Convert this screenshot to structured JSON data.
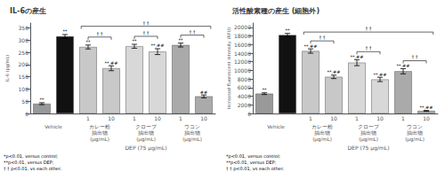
{
  "chart_data": [
    {
      "type": "bar",
      "title": "IL-6の産生",
      "y_label": "IL-6 (pg/mL)",
      "categories": [
        null,
        null,
        "1",
        "10",
        "1",
        "10",
        "1",
        "10"
      ],
      "groups": [
        "Vehicle",
        "カレー粉\n抽出物",
        "クローブ\n抽出物",
        "ウコン\n抽出物"
      ],
      "group_unit": "(μg/mL)",
      "dep_label": "DEP (75 μg/mL)",
      "values": [
        40,
        315,
        272,
        185,
        275,
        253,
        280,
        70
      ],
      "errors": [
        4,
        8,
        8,
        10,
        8,
        12,
        8,
        6
      ],
      "colors": [
        "#999999",
        "#111111",
        "#c8c8c8",
        "#c8c8c8",
        "#d8d8d8",
        "#d8d8d8",
        "#aaaaaa",
        "#aaaaaa"
      ],
      "sig_labels": [
        "**",
        "**",
        "**",
        "**,##",
        "**",
        "**,##",
        "**",
        "##"
      ],
      "bracket_label": "† †",
      "footnote": "*p<0.01, versus control;\n**p<0.01, versus DEP;\n† † p<0.01, vs each other.",
      "ylim": [
        0,
        370
      ],
      "yticks": [
        0,
        50,
        100,
        150,
        200,
        250,
        300,
        350
      ],
      "grid": false
    },
    {
      "type": "bar",
      "title": "活性酸素種の産生 (細胞外)",
      "y_label": "Increased fluorescent intensity (RFU)",
      "categories": [
        null,
        null,
        "1",
        "10",
        "1",
        "10",
        "1",
        "10"
      ],
      "groups": [
        "Vehicle",
        "カレー粉\n抽出物",
        "クローブ\n抽出物",
        "ウコン\n抽出物"
      ],
      "group_unit": "(μg/mL)",
      "dep_label": "DEP (75 μg/mL)",
      "values": [
        4600,
        18200,
        14500,
        8500,
        11800,
        7900,
        9800,
        600
      ],
      "errors": [
        200,
        400,
        500,
        400,
        700,
        500,
        600,
        100
      ],
      "colors": [
        "#999999",
        "#111111",
        "#c8c8c8",
        "#c8c8c8",
        "#d8d8d8",
        "#d8d8d8",
        "#aaaaaa",
        "#aaaaaa"
      ],
      "sig_labels": [
        "**",
        "**",
        "**,##",
        "**,##",
        "**,##",
        "**,##",
        "**,##",
        "**,##"
      ],
      "bracket_label": "† †",
      "footnote": "*p<0.01, versus control;\n**p<0.01, versus DEP;\n† † p<0.01, vs each other.",
      "ylim": [
        0,
        21000
      ],
      "yticks": [
        0,
        2000,
        4000,
        6000,
        8000,
        10000,
        12000,
        14000,
        16000,
        18000,
        20000
      ],
      "grid": false
    }
  ]
}
